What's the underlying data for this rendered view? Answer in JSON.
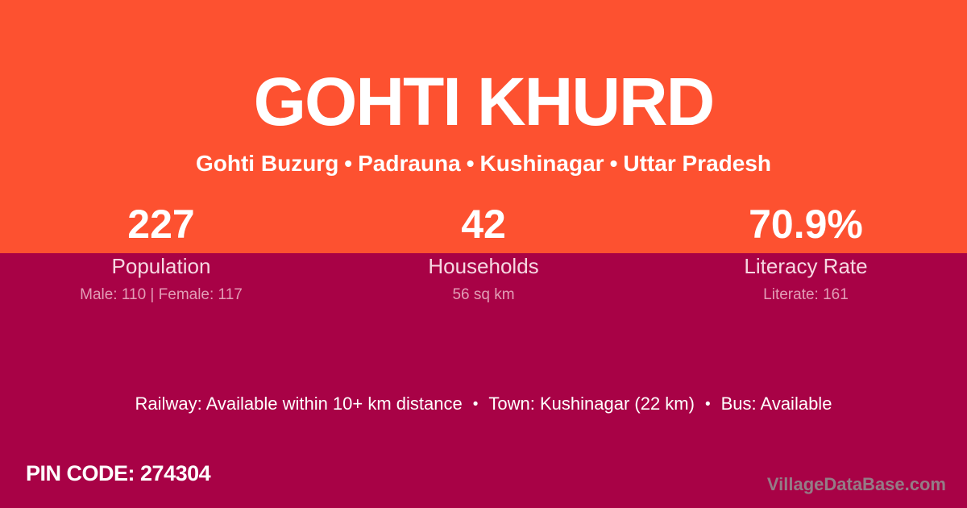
{
  "header": {
    "title": "GOHTI KHURD",
    "location_parts": [
      "Gohti Buzurg",
      "Padrauna",
      "Kushinagar",
      "Uttar Pradesh"
    ],
    "separator": "•"
  },
  "stats": [
    {
      "value": "227",
      "label": "Population",
      "detail": "Male: 110 | Female: 117"
    },
    {
      "value": "42",
      "label": "Households",
      "detail": "56 sq km"
    },
    {
      "value": "70.9%",
      "label": "Literacy Rate",
      "detail": "Literate: 161"
    }
  ],
  "transport": {
    "items": [
      "Railway: Available within 10+ km distance",
      "Town: Kushinagar (22 km)",
      "Bus: Available"
    ],
    "separator": "•"
  },
  "footer": {
    "pin_label": "PIN CODE:",
    "pin_value": "274304",
    "watermark": "VillageDataBase.com"
  },
  "colors": {
    "orange": "#FD5130",
    "crimson": "#A80246",
    "label_pink": "#F6D8E2",
    "detail_pink": "#E29DB6",
    "watermark_gray": "#947C86",
    "white": "#FFFFFF"
  }
}
